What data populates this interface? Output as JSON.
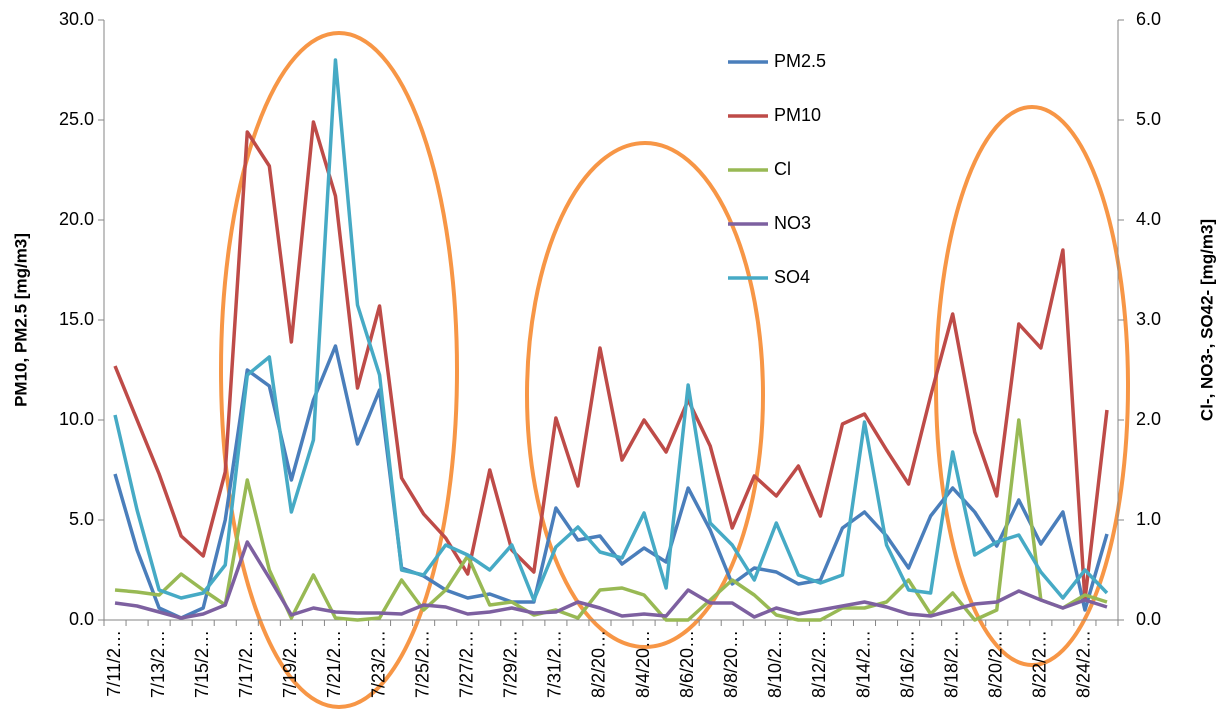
{
  "chart_data": {
    "type": "line",
    "y_label": "PM10, PM2.5 [mg/m3]",
    "y2_label": "Cl-, NO3-, SO42- [mg/m3]",
    "categories": [
      "7/11/2…",
      null,
      "7/13/2…",
      null,
      "7/15/2…",
      null,
      "7/17/2…",
      null,
      "7/19/2…",
      null,
      "7/21/2…",
      null,
      "7/23/2…",
      null,
      "7/25/2…",
      null,
      "7/27/2…",
      null,
      "7/29/2…",
      null,
      "7/31/2…",
      null,
      "8/2/20…",
      null,
      "8/4/20…",
      null,
      "8/6/20…",
      null,
      "8/8/20…",
      null,
      "8/10/2…",
      null,
      "8/12/2…",
      null,
      "8/14/2…",
      null,
      "8/16/2…",
      null,
      "8/18/2…",
      null,
      "8/20/2…",
      null,
      "8/22/2…",
      null,
      "8/24/2…",
      null
    ],
    "ylim": [
      0,
      30
    ],
    "yticks": [
      {
        "value": 0,
        "label": "0.0"
      },
      {
        "value": 5,
        "label": "5.0"
      },
      {
        "value": 10,
        "label": "10.0"
      },
      {
        "value": 15,
        "label": "15.0"
      },
      {
        "value": 20,
        "label": "20.0"
      },
      {
        "value": 25,
        "label": "25.0"
      },
      {
        "value": 30,
        "label": "30.0"
      }
    ],
    "y2lim": [
      0,
      6
    ],
    "y2ticks": [
      {
        "value": 0,
        "label": "0.0"
      },
      {
        "value": 1,
        "label": "1.0"
      },
      {
        "value": 2,
        "label": "2.0"
      },
      {
        "value": 3,
        "label": "3.0"
      },
      {
        "value": 4,
        "label": "4.0"
      },
      {
        "value": 5,
        "label": "5.0"
      },
      {
        "value": 6,
        "label": "6.0"
      }
    ],
    "grid": false,
    "legend": "top-center",
    "series": [
      {
        "name": "PM2.5",
        "color": "#4a7ebb",
        "values": [
          7.3,
          3.5,
          0.6,
          0.1,
          0.6,
          5.0,
          12.5,
          11.7,
          7.0,
          11.0,
          13.7,
          8.8,
          11.5,
          2.6,
          2.2,
          1.5,
          1.1,
          1.3,
          0.9,
          0.9,
          5.6,
          4.0,
          4.2,
          2.8,
          3.6,
          2.9,
          6.6,
          4.5,
          1.8,
          2.6,
          2.4,
          1.8,
          2.0,
          4.6,
          5.4,
          4.2,
          2.6,
          5.2,
          6.6,
          5.4,
          3.7,
          6.0,
          3.8,
          5.4,
          0.5,
          4.3
        ]
      },
      {
        "name": "PM10",
        "color": "#be4b48",
        "values": [
          12.7,
          10.0,
          7.3,
          4.2,
          3.2,
          7.4,
          24.4,
          22.7,
          13.9,
          24.9,
          21.2,
          11.6,
          15.7,
          7.1,
          5.3,
          4.1,
          2.3,
          7.5,
          3.5,
          2.4,
          10.1,
          6.7,
          13.6,
          8.0,
          10.0,
          8.4,
          11.0,
          8.7,
          4.6,
          7.2,
          6.2,
          7.7,
          5.2,
          9.8,
          10.3,
          8.5,
          6.8,
          11.2,
          15.3,
          9.4,
          6.2,
          14.8,
          13.6,
          18.5,
          1.0,
          10.5
        ]
      },
      {
        "name": "Cl",
        "color": "#98b954",
        "axis": "y2",
        "values": [
          0.3,
          0.28,
          0.25,
          0.46,
          0.3,
          0.15,
          1.4,
          0.5,
          0.02,
          0.45,
          0.02,
          0.0,
          0.02,
          0.4,
          0.1,
          0.3,
          0.64,
          0.15,
          0.18,
          0.05,
          0.1,
          0.02,
          0.3,
          0.32,
          0.25,
          0.0,
          0.0,
          0.2,
          0.4,
          0.25,
          0.05,
          0.0,
          0.0,
          0.12,
          0.12,
          0.18,
          0.4,
          0.06,
          0.27,
          0.0,
          0.1,
          2.0,
          0.2,
          0.12,
          0.25,
          0.18
        ]
      },
      {
        "name": "NO3",
        "color": "#7d60a0",
        "axis": "y2",
        "values": [
          0.17,
          0.14,
          0.08,
          0.02,
          0.06,
          0.15,
          0.78,
          0.42,
          0.05,
          0.12,
          0.08,
          0.07,
          0.07,
          0.06,
          0.15,
          0.13,
          0.06,
          0.08,
          0.12,
          0.07,
          0.08,
          0.18,
          0.12,
          0.04,
          0.06,
          0.04,
          0.3,
          0.17,
          0.17,
          0.03,
          0.12,
          0.06,
          0.1,
          0.14,
          0.18,
          0.13,
          0.06,
          0.04,
          0.1,
          0.16,
          0.18,
          0.29,
          0.2,
          0.12,
          0.2,
          0.13
        ]
      },
      {
        "name": "SO4",
        "color": "#46aac5",
        "axis": "y2",
        "values": [
          2.05,
          1.1,
          0.3,
          0.22,
          0.27,
          0.55,
          2.45,
          2.63,
          1.08,
          1.8,
          5.6,
          3.15,
          2.45,
          0.5,
          0.45,
          0.75,
          0.65,
          0.5,
          0.75,
          0.2,
          0.73,
          0.93,
          0.68,
          0.62,
          1.07,
          0.32,
          2.35,
          0.97,
          0.75,
          0.4,
          0.97,
          0.45,
          0.37,
          0.45,
          1.98,
          0.75,
          0.3,
          0.27,
          1.68,
          0.65,
          0.78,
          0.85,
          0.48,
          0.22,
          0.5,
          0.27
        ]
      }
    ]
  }
}
